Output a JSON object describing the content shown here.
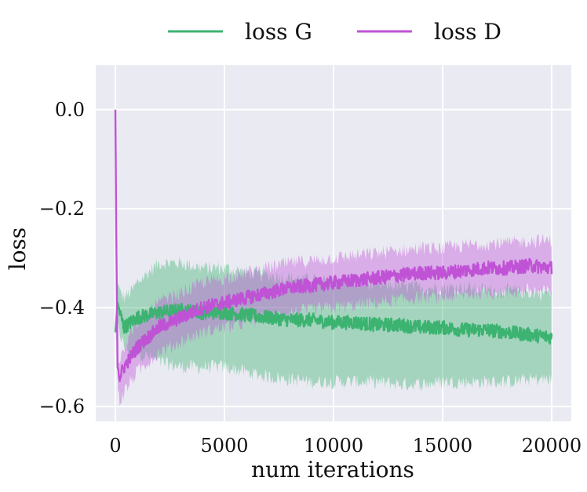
{
  "chart_data": {
    "type": "line",
    "title": "",
    "xlabel": "num iterations",
    "ylabel": "loss",
    "xlim": [
      -900,
      20900
    ],
    "ylim": [
      -0.63,
      0.09
    ],
    "xticks": [
      0,
      5000,
      10000,
      15000,
      20000
    ],
    "xtick_labels": [
      "0",
      "5000",
      "10000",
      "15000",
      "20000"
    ],
    "yticks": [
      0.0,
      -0.2,
      -0.4,
      -0.6
    ],
    "ytick_labels": [
      "0.0",
      "−0.2",
      "−0.4",
      "−0.6"
    ],
    "grid": true,
    "legend_position": "top-center",
    "series": [
      {
        "name": "loss G",
        "color": "#3cb371",
        "x": [
          0,
          100,
          200,
          400,
          700,
          1000,
          1500,
          2000,
          3000,
          4000,
          5000,
          6000,
          7000,
          8000,
          9000,
          10000,
          11000,
          12000,
          13000,
          14000,
          15000,
          16000,
          17000,
          18000,
          19000,
          20000
        ],
        "y": [
          -0.45,
          -0.39,
          -0.41,
          -0.44,
          -0.43,
          -0.42,
          -0.415,
          -0.41,
          -0.405,
          -0.41,
          -0.41,
          -0.415,
          -0.42,
          -0.425,
          -0.425,
          -0.43,
          -0.43,
          -0.435,
          -0.435,
          -0.44,
          -0.44,
          -0.445,
          -0.445,
          -0.45,
          -0.455,
          -0.46
        ],
        "band_upper": [
          -0.43,
          -0.34,
          -0.37,
          -0.38,
          -0.37,
          -0.35,
          -0.33,
          -0.31,
          -0.31,
          -0.32,
          -0.32,
          -0.33,
          -0.335,
          -0.34,
          -0.345,
          -0.35,
          -0.35,
          -0.355,
          -0.355,
          -0.36,
          -0.36,
          -0.36,
          -0.365,
          -0.365,
          -0.37,
          -0.37
        ],
        "band_lower": [
          -0.47,
          -0.44,
          -0.45,
          -0.48,
          -0.49,
          -0.49,
          -0.5,
          -0.51,
          -0.52,
          -0.52,
          -0.52,
          -0.53,
          -0.54,
          -0.545,
          -0.55,
          -0.55,
          -0.55,
          -0.55,
          -0.555,
          -0.555,
          -0.55,
          -0.55,
          -0.55,
          -0.55,
          -0.545,
          -0.545
        ]
      },
      {
        "name": "loss D",
        "color": "#c052d6",
        "x": [
          0,
          50,
          100,
          200,
          400,
          700,
          1000,
          1500,
          2000,
          3000,
          4000,
          5000,
          6000,
          7000,
          8000,
          9000,
          10000,
          11000,
          12000,
          13000,
          14000,
          15000,
          16000,
          17000,
          18000,
          19000,
          20000
        ],
        "y": [
          0.0,
          -0.3,
          -0.52,
          -0.54,
          -0.52,
          -0.5,
          -0.48,
          -0.46,
          -0.44,
          -0.42,
          -0.4,
          -0.39,
          -0.38,
          -0.37,
          -0.36,
          -0.355,
          -0.35,
          -0.345,
          -0.34,
          -0.335,
          -0.33,
          -0.33,
          -0.325,
          -0.32,
          -0.32,
          -0.315,
          -0.32
        ],
        "band_upper": [
          0.0,
          -0.28,
          -0.5,
          -0.5,
          -0.48,
          -0.45,
          -0.43,
          -0.41,
          -0.39,
          -0.37,
          -0.35,
          -0.34,
          -0.33,
          -0.32,
          -0.31,
          -0.305,
          -0.3,
          -0.295,
          -0.29,
          -0.285,
          -0.28,
          -0.28,
          -0.275,
          -0.27,
          -0.27,
          -0.265,
          -0.265
        ],
        "band_lower": [
          0.0,
          -0.32,
          -0.56,
          -0.59,
          -0.57,
          -0.55,
          -0.53,
          -0.51,
          -0.49,
          -0.47,
          -0.45,
          -0.44,
          -0.43,
          -0.42,
          -0.41,
          -0.405,
          -0.4,
          -0.395,
          -0.39,
          -0.385,
          -0.38,
          -0.38,
          -0.375,
          -0.37,
          -0.37,
          -0.365,
          -0.37
        ]
      }
    ]
  }
}
